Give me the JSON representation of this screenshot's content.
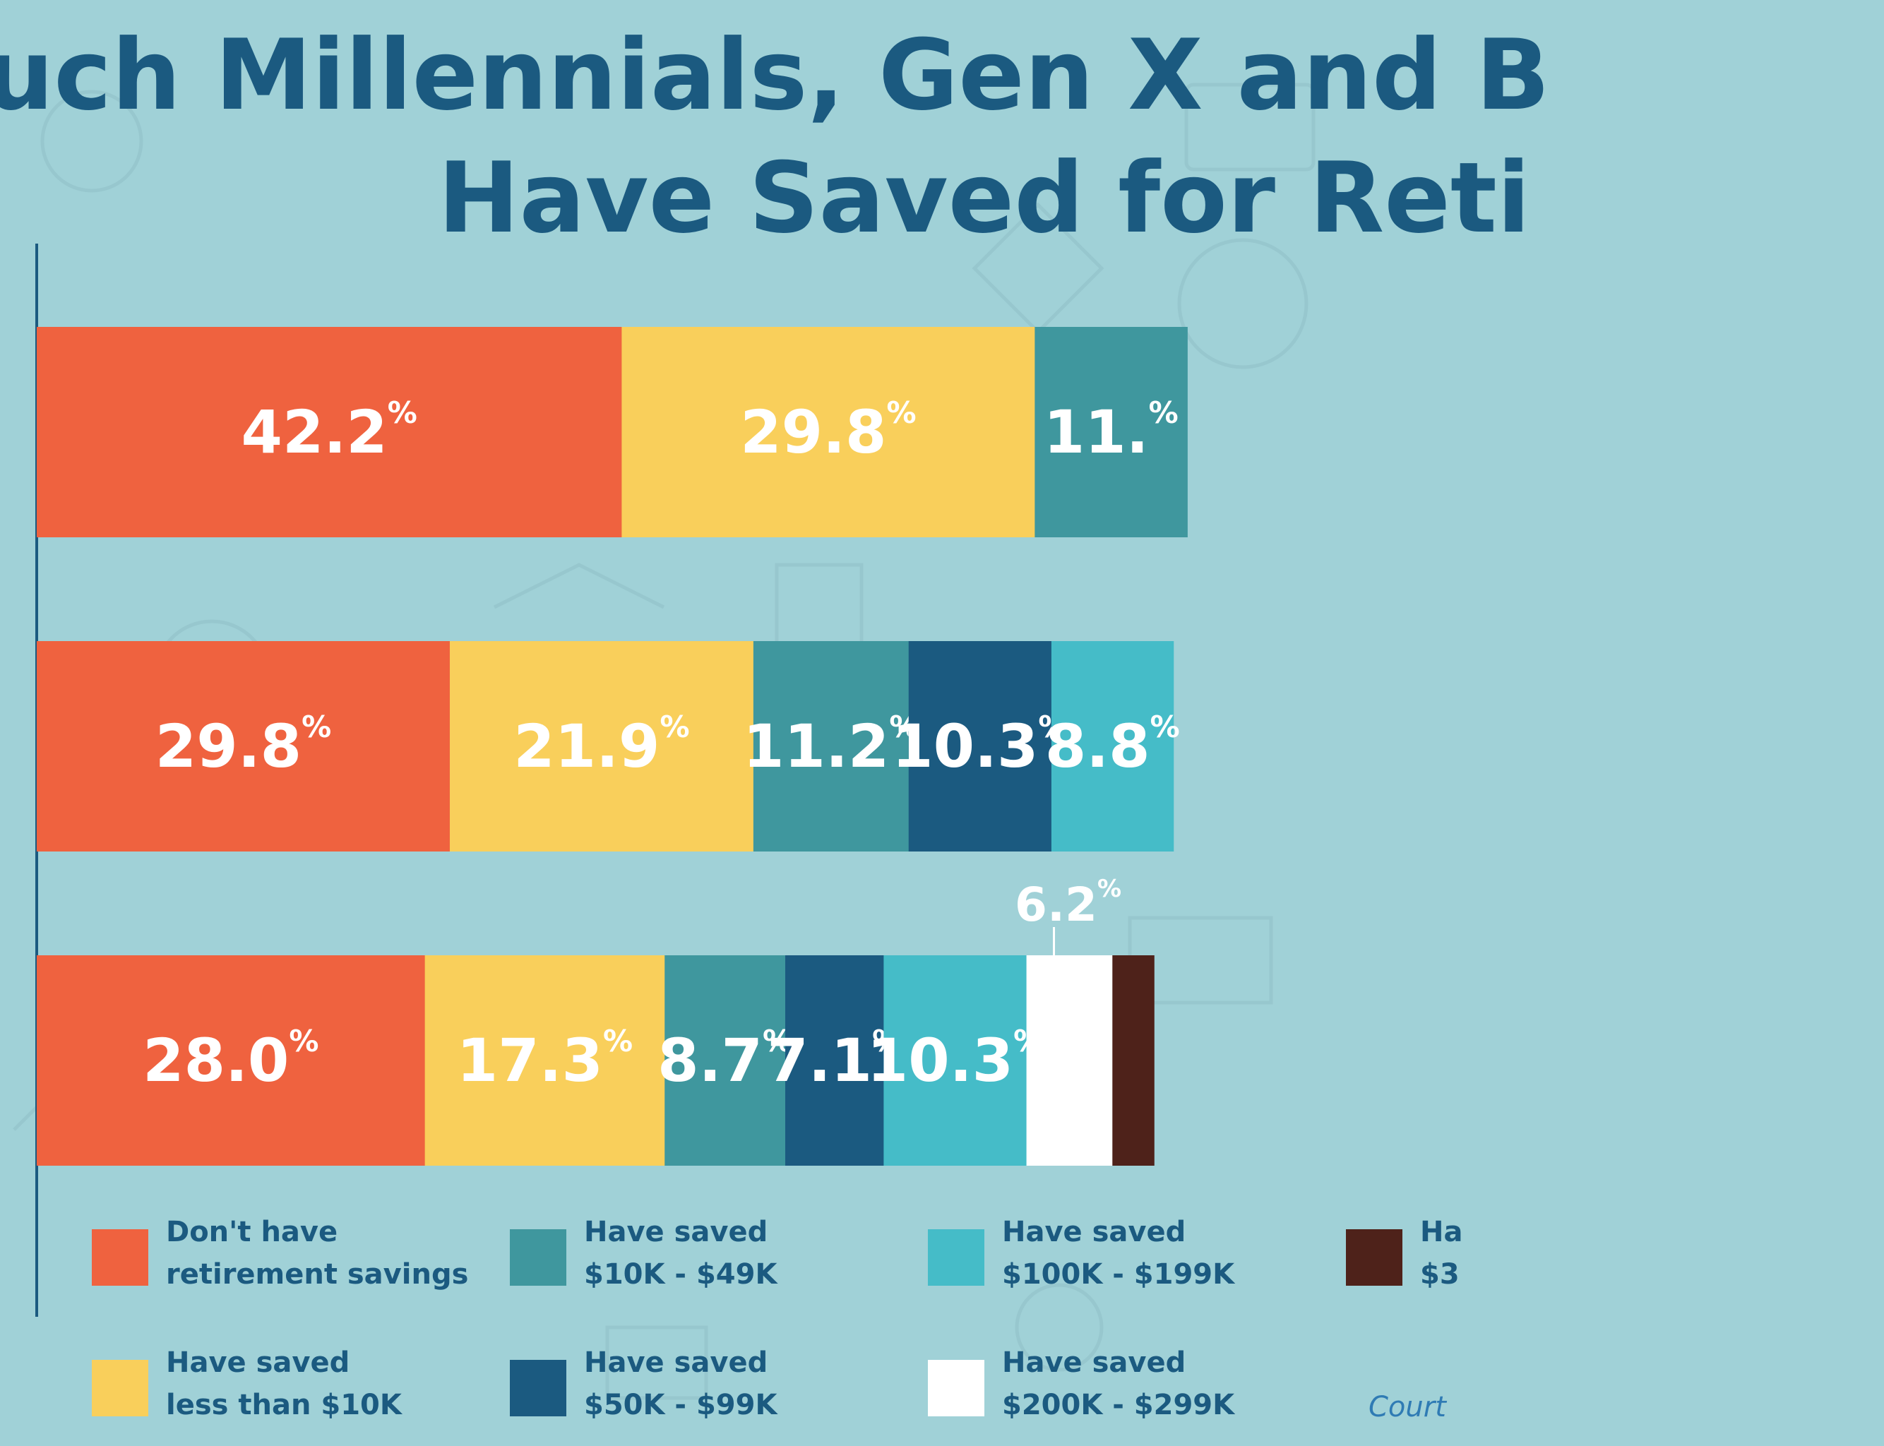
{
  "title": {
    "line1": "uch Millennials, Gen X and B",
    "line2": "Have Saved for Reti"
  },
  "colors": {
    "background": "#a0d1d7",
    "title": "#1b5a80",
    "label_text": "#ffffff"
  },
  "chart_data": {
    "type": "bar",
    "orientation": "horizontal",
    "stacked": true,
    "xlim": [
      0,
      100
    ],
    "grid": false,
    "legend_position": "bottom",
    "series": [
      {
        "name": "Don't have\nretirement savings",
        "color": "#ef623f",
        "values": [
          42.2,
          29.8,
          28.0
        ],
        "labels": [
          "42.2",
          "29.8",
          "28.0"
        ]
      },
      {
        "name": "Have saved\nless than $10K",
        "color": "#f9cf5b",
        "values": [
          29.8,
          21.9,
          17.3
        ],
        "labels": [
          "29.8",
          "21.9",
          "17.3"
        ]
      },
      {
        "name": "Have saved\n$10K - $49K",
        "color": "#3f979e",
        "values": [
          11.0,
          11.2,
          8.7
        ],
        "labels": [
          "11.",
          "11.2",
          "8.7"
        ]
      },
      {
        "name": "Have saved\n$50K - $99K",
        "color": "#1b5a80",
        "values": [
          null,
          10.3,
          7.1
        ],
        "labels": [
          "",
          "10.3",
          "7.1"
        ]
      },
      {
        "name": "Have saved\n$100K - $199K",
        "color": "#45bcc8",
        "values": [
          null,
          8.8,
          10.3
        ],
        "labels": [
          "",
          "8.8",
          "10.3"
        ]
      },
      {
        "name": "Have saved\n$200K - $299K",
        "color": "#ffffff",
        "values": [
          null,
          null,
          6.2
        ],
        "labels": [
          "",
          "",
          "6.2"
        ],
        "label_above": true
      },
      {
        "name": "Ha\n$3",
        "color": "#4e221a",
        "values": [
          null,
          null,
          3.0
        ],
        "labels": [
          "",
          "",
          ""
        ]
      }
    ],
    "percent_sign": "%"
  },
  "courtesy": "Court"
}
